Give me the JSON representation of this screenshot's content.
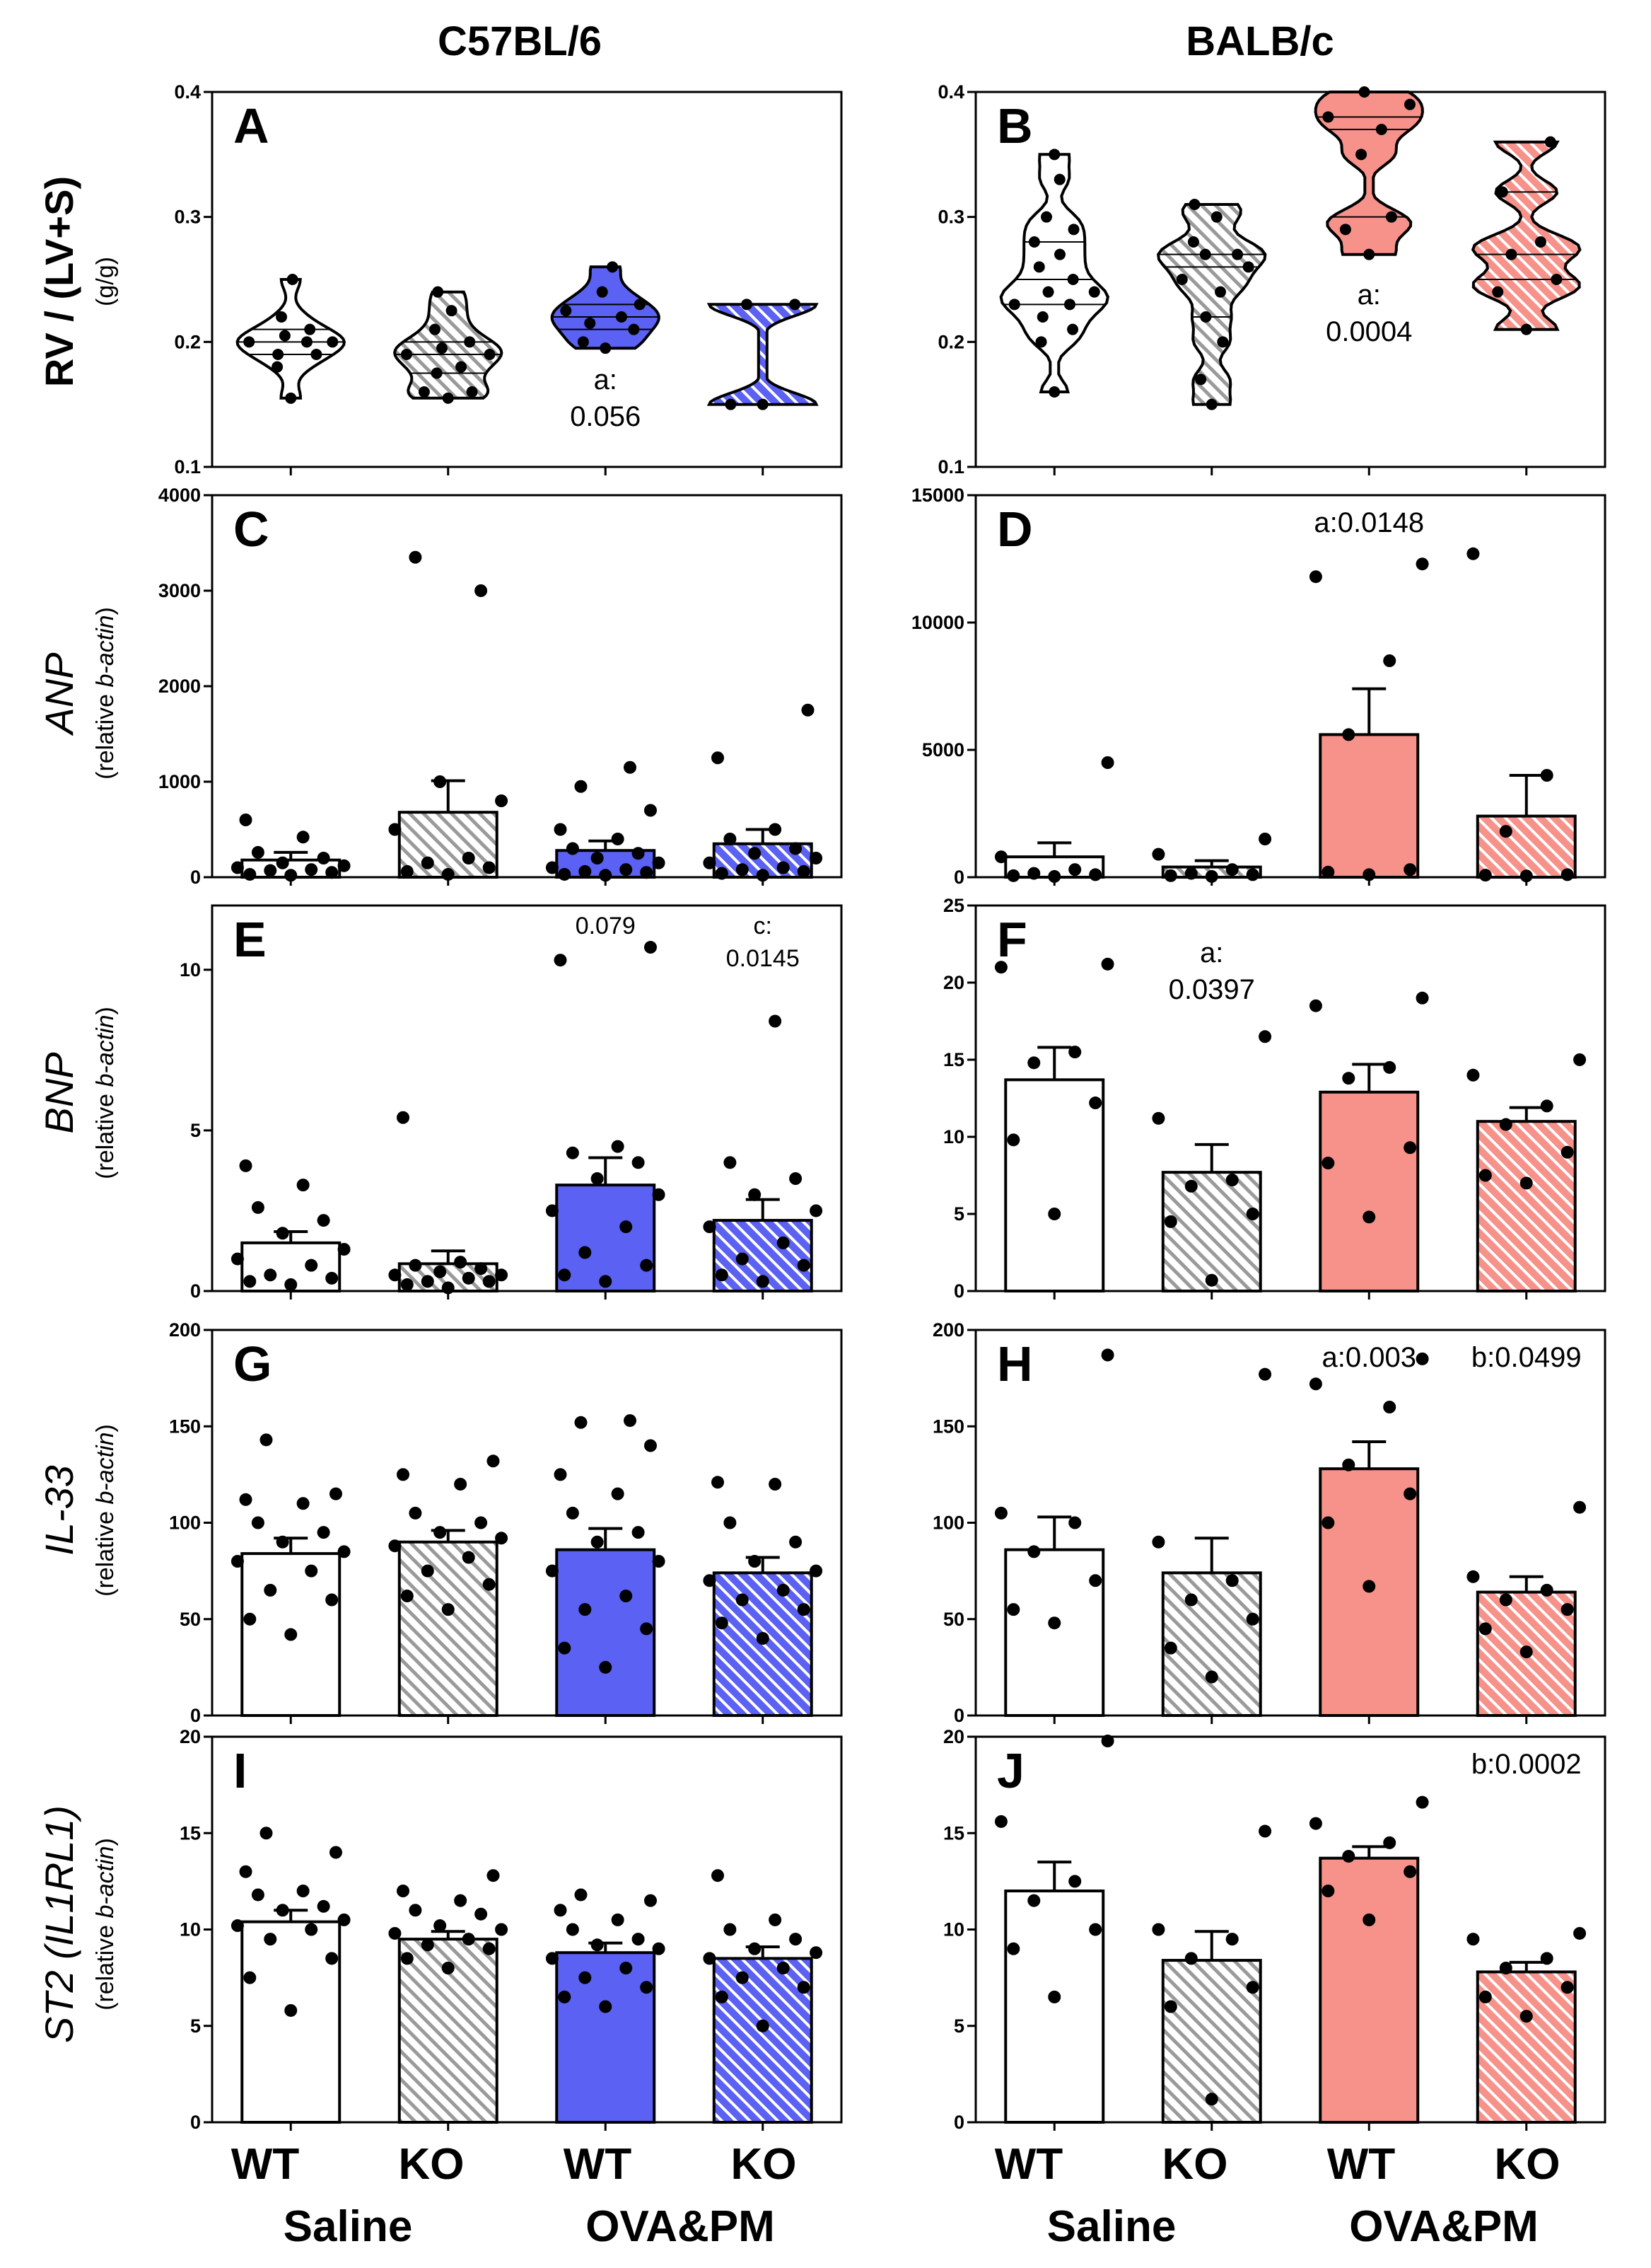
{
  "figure": {
    "strains": [
      "C57BL/6",
      "BALB/c"
    ],
    "groups": [
      "WT",
      "KO",
      "WT",
      "KO"
    ],
    "conditions": [
      "Saline",
      "OVA&PM"
    ],
    "colors": {
      "white": "#ffffff",
      "gray_hatch": "#9a9a9a",
      "blue": "#5b61f2",
      "red": "#f7928a"
    }
  },
  "rows": [
    {
      "ylabel": "RV / (LV+S)",
      "yunit": "(g/g)"
    },
    {
      "ylabel": "ANP",
      "yunit_plain": "(relative ",
      "yunit_italic": "b-actin",
      "yunit_close": ")"
    },
    {
      "ylabel": "BNP",
      "yunit_plain": "(relative ",
      "yunit_italic": "b-actin",
      "yunit_close": ")"
    },
    {
      "ylabel": "IL-33",
      "yunit_plain": "(relative ",
      "yunit_italic": "b-actin",
      "yunit_close": ")"
    },
    {
      "ylabel_plain": "ST2 (",
      "ylabel_italic": "IL1RL1",
      "ylabel_close": ")",
      "yunit_plain": "(relative ",
      "yunit_italic": "b-actin",
      "yunit_close": ")"
    }
  ],
  "chart_data": [
    {
      "panel": "A",
      "type": "violin",
      "strain": "C57BL/6",
      "ylim": [
        0.1,
        0.4
      ],
      "yticks": [
        "0.1",
        "0.2",
        "0.3",
        "0.4"
      ],
      "ytick_values": [
        0.1,
        0.2,
        0.3,
        0.4
      ],
      "series": [
        {
          "name": "Saline WT",
          "values": [
            0.155,
            0.18,
            0.19,
            0.19,
            0.2,
            0.2,
            0.2,
            0.205,
            0.21,
            0.22,
            0.25
          ]
        },
        {
          "name": "Saline KO",
          "values": [
            0.155,
            0.16,
            0.16,
            0.175,
            0.18,
            0.19,
            0.19,
            0.195,
            0.2,
            0.21,
            0.225,
            0.24
          ]
        },
        {
          "name": "OVA&PM WT",
          "values": [
            0.195,
            0.2,
            0.21,
            0.215,
            0.22,
            0.225,
            0.23,
            0.24,
            0.26
          ]
        },
        {
          "name": "OVA&PM KO",
          "values": [
            0.15,
            0.15,
            0.23,
            0.23
          ]
        }
      ],
      "annotations": [
        {
          "group": 2,
          "text": "a:",
          "text2": "0.056"
        }
      ]
    },
    {
      "panel": "B",
      "type": "violin",
      "strain": "BALB/c",
      "ylim": [
        0.1,
        0.4
      ],
      "yticks": [
        "0.1",
        "0.2",
        "0.3",
        "0.4"
      ],
      "ytick_values": [
        0.1,
        0.2,
        0.3,
        0.4
      ],
      "series": [
        {
          "name": "Saline WT",
          "values": [
            0.16,
            0.2,
            0.21,
            0.22,
            0.23,
            0.23,
            0.24,
            0.24,
            0.25,
            0.26,
            0.27,
            0.28,
            0.29,
            0.3,
            0.33,
            0.35
          ]
        },
        {
          "name": "Saline KO",
          "values": [
            0.15,
            0.17,
            0.2,
            0.22,
            0.24,
            0.25,
            0.26,
            0.27,
            0.27,
            0.28,
            0.3,
            0.31
          ]
        },
        {
          "name": "OVA&PM WT",
          "values": [
            0.27,
            0.29,
            0.3,
            0.35,
            0.37,
            0.38,
            0.39,
            0.4
          ]
        },
        {
          "name": "OVA&PM KO",
          "values": [
            0.21,
            0.24,
            0.25,
            0.27,
            0.28,
            0.32,
            0.36
          ]
        }
      ],
      "annotations": [
        {
          "group": 2,
          "text": "a:",
          "text2": "0.0004"
        }
      ]
    },
    {
      "panel": "C",
      "type": "bar",
      "strain": "C57BL/6",
      "ylim": [
        0,
        4000
      ],
      "yticks": [
        "0",
        "1000",
        "2000",
        "3000",
        "4000"
      ],
      "ytick_values": [
        0,
        1000,
        2000,
        3000,
        4000
      ],
      "means": [
        180,
        680,
        280,
        350
      ],
      "errors": [
        80,
        330,
        100,
        150
      ],
      "points": [
        [
          20,
          30,
          50,
          70,
          80,
          100,
          120,
          150,
          200,
          260,
          420,
          600
        ],
        [
          30,
          60,
          100,
          150,
          200,
          500,
          800,
          1000,
          3000,
          3350
        ],
        [
          20,
          30,
          50,
          60,
          80,
          100,
          150,
          200,
          250,
          300,
          400,
          500,
          700,
          950,
          1150
        ],
        [
          20,
          40,
          60,
          80,
          100,
          150,
          200,
          250,
          300,
          400,
          500,
          1250,
          1750
        ]
      ],
      "annotations": []
    },
    {
      "panel": "D",
      "type": "bar",
      "strain": "BALB/c",
      "ylim": [
        0,
        15000
      ],
      "yticks": [
        "0",
        "5000",
        "10000",
        "15000"
      ],
      "ytick_values": [
        0,
        5000,
        10000,
        15000
      ],
      "means": [
        800,
        400,
        5600,
        2400
      ],
      "errors": [
        550,
        250,
        1800,
        1600
      ],
      "points": [
        [
          30,
          60,
          100,
          150,
          300,
          800,
          4500
        ],
        [
          30,
          60,
          100,
          150,
          300,
          900,
          1500
        ],
        [
          100,
          200,
          300,
          5600,
          8500,
          11800,
          12300
        ],
        [
          50,
          80,
          100,
          1800,
          4000,
          12700
        ]
      ],
      "annotations": [
        {
          "group": 2,
          "text": "a:0.0148"
        }
      ]
    },
    {
      "panel": "E",
      "type": "bar",
      "strain": "C57BL/6",
      "ylim": [
        0,
        12
      ],
      "yticks": [
        "0",
        "5",
        "10"
      ],
      "ytick_values": [
        0,
        5,
        10
      ],
      "means": [
        1.5,
        0.85,
        3.3,
        2.2
      ],
      "errors": [
        0.35,
        0.4,
        0.85,
        0.65
      ],
      "points": [
        [
          0.2,
          0.3,
          0.4,
          0.5,
          0.8,
          1.0,
          1.3,
          1.8,
          2.2,
          2.6,
          3.3,
          3.9
        ],
        [
          0.1,
          0.2,
          0.3,
          0.3,
          0.4,
          0.5,
          0.5,
          0.6,
          0.7,
          0.8,
          0.9,
          5.4
        ],
        [
          0.3,
          0.5,
          0.8,
          1.2,
          2.0,
          2.5,
          3.0,
          3.5,
          4.0,
          4.3,
          4.5,
          10.3,
          10.7
        ],
        [
          0.3,
          0.5,
          0.8,
          1.0,
          1.5,
          2.0,
          2.5,
          3.0,
          3.5,
          4.0,
          8.4
        ]
      ],
      "annotations": [
        {
          "group": 2,
          "text": "0.079"
        },
        {
          "group": 3,
          "text": "c:",
          "text2": "0.0145"
        }
      ]
    },
    {
      "panel": "F",
      "type": "bar",
      "strain": "BALB/c",
      "ylim": [
        0,
        25
      ],
      "yticks": [
        "0",
        "5",
        "10",
        "15",
        "20",
        "25"
      ],
      "ytick_values": [
        0,
        5,
        10,
        15,
        20,
        25
      ],
      "means": [
        13.7,
        7.7,
        12.9,
        11.0
      ],
      "errors": [
        2.1,
        1.8,
        1.8,
        0.9
      ],
      "points": [
        [
          5.0,
          9.8,
          12.2,
          14.8,
          15.5,
          21.0,
          21.2
        ],
        [
          0.7,
          4.5,
          5.0,
          6.8,
          7.2,
          11.2,
          16.5
        ],
        [
          4.8,
          8.3,
          9.3,
          13.8,
          14.5,
          18.5,
          19.0
        ],
        [
          7.0,
          7.5,
          9.0,
          10.8,
          12.0,
          14.0,
          15.0
        ]
      ],
      "annotations": [
        {
          "group": 1,
          "text": "a:",
          "text2": "0.0397"
        }
      ]
    },
    {
      "panel": "G",
      "type": "bar",
      "strain": "C57BL/6",
      "ylim": [
        0,
        200
      ],
      "yticks": [
        "0",
        "50",
        "100",
        "150",
        "200"
      ],
      "ytick_values": [
        0,
        50,
        100,
        150,
        200
      ],
      "means": [
        84,
        90,
        86,
        74
      ],
      "errors": [
        8,
        6,
        11,
        8
      ],
      "points": [
        [
          42,
          50,
          60,
          65,
          75,
          80,
          85,
          90,
          95,
          100,
          110,
          112,
          115,
          143
        ],
        [
          55,
          62,
          68,
          75,
          82,
          88,
          92,
          95,
          100,
          105,
          120,
          125,
          132
        ],
        [
          25,
          35,
          45,
          55,
          62,
          75,
          80,
          90,
          95,
          105,
          115,
          125,
          140,
          152,
          153
        ],
        [
          40,
          48,
          55,
          60,
          65,
          70,
          75,
          80,
          90,
          100,
          120,
          121
        ]
      ],
      "annotations": []
    },
    {
      "panel": "H",
      "type": "bar",
      "strain": "BALB/c",
      "ylim": [
        0,
        200
      ],
      "yticks": [
        "0",
        "50",
        "100",
        "150",
        "200"
      ],
      "ytick_values": [
        0,
        50,
        100,
        150,
        200
      ],
      "means": [
        86,
        74,
        128,
        64
      ],
      "errors": [
        17,
        18,
        14,
        8
      ],
      "points": [
        [
          48,
          55,
          70,
          85,
          100,
          105,
          187
        ],
        [
          20,
          35,
          50,
          60,
          70,
          90,
          177
        ],
        [
          67,
          100,
          115,
          130,
          160,
          172,
          185
        ],
        [
          33,
          45,
          55,
          60,
          65,
          72,
          108
        ]
      ],
      "annotations": [
        {
          "group": 2,
          "text": "a:0.003"
        },
        {
          "group": 3,
          "text": "b:0.0499"
        }
      ]
    },
    {
      "panel": "I",
      "type": "bar",
      "strain": "C57BL/6",
      "ylim": [
        0,
        20
      ],
      "yticks": [
        "0",
        "5",
        "10",
        "15",
        "20"
      ],
      "ytick_values": [
        0,
        5,
        10,
        15,
        20
      ],
      "means": [
        10.4,
        9.5,
        8.8,
        8.5
      ],
      "errors": [
        0.6,
        0.4,
        0.5,
        0.6
      ],
      "points": [
        [
          5.8,
          7.5,
          8.5,
          9.5,
          10.0,
          10.2,
          10.5,
          11.0,
          11.2,
          11.8,
          12.0,
          13.0,
          14.0,
          15.0
        ],
        [
          8.0,
          8.5,
          9.0,
          9.2,
          9.5,
          9.8,
          10.0,
          10.2,
          10.8,
          11.0,
          11.5,
          12.0,
          12.8
        ],
        [
          6.0,
          6.5,
          7.0,
          7.5,
          8.0,
          8.5,
          9.0,
          9.2,
          9.5,
          10.0,
          10.5,
          11.0,
          11.5,
          11.8
        ],
        [
          5.0,
          6.5,
          7.0,
          7.5,
          8.0,
          8.5,
          8.8,
          9.0,
          9.5,
          10.0,
          10.5,
          12.8
        ]
      ],
      "annotations": []
    },
    {
      "panel": "J",
      "type": "bar",
      "strain": "BALB/c",
      "ylim": [
        0,
        20
      ],
      "yticks": [
        "0",
        "5",
        "10",
        "15",
        "20"
      ],
      "ytick_values": [
        0,
        5,
        10,
        15,
        20
      ],
      "means": [
        12.0,
        8.4,
        13.7,
        7.8
      ],
      "errors": [
        1.5,
        1.5,
        0.6,
        0.5
      ],
      "points": [
        [
          6.5,
          9.0,
          10.0,
          11.5,
          12.5,
          15.6,
          19.8
        ],
        [
          1.2,
          6.0,
          7.0,
          8.5,
          9.5,
          10.0,
          15.1
        ],
        [
          10.5,
          12.0,
          13.0,
          13.8,
          14.5,
          15.5,
          16.6
        ],
        [
          5.5,
          6.5,
          7.0,
          8.0,
          8.5,
          9.5,
          9.8
        ]
      ],
      "annotations": [
        {
          "group": 3,
          "text": "b:0.0002"
        }
      ]
    }
  ]
}
